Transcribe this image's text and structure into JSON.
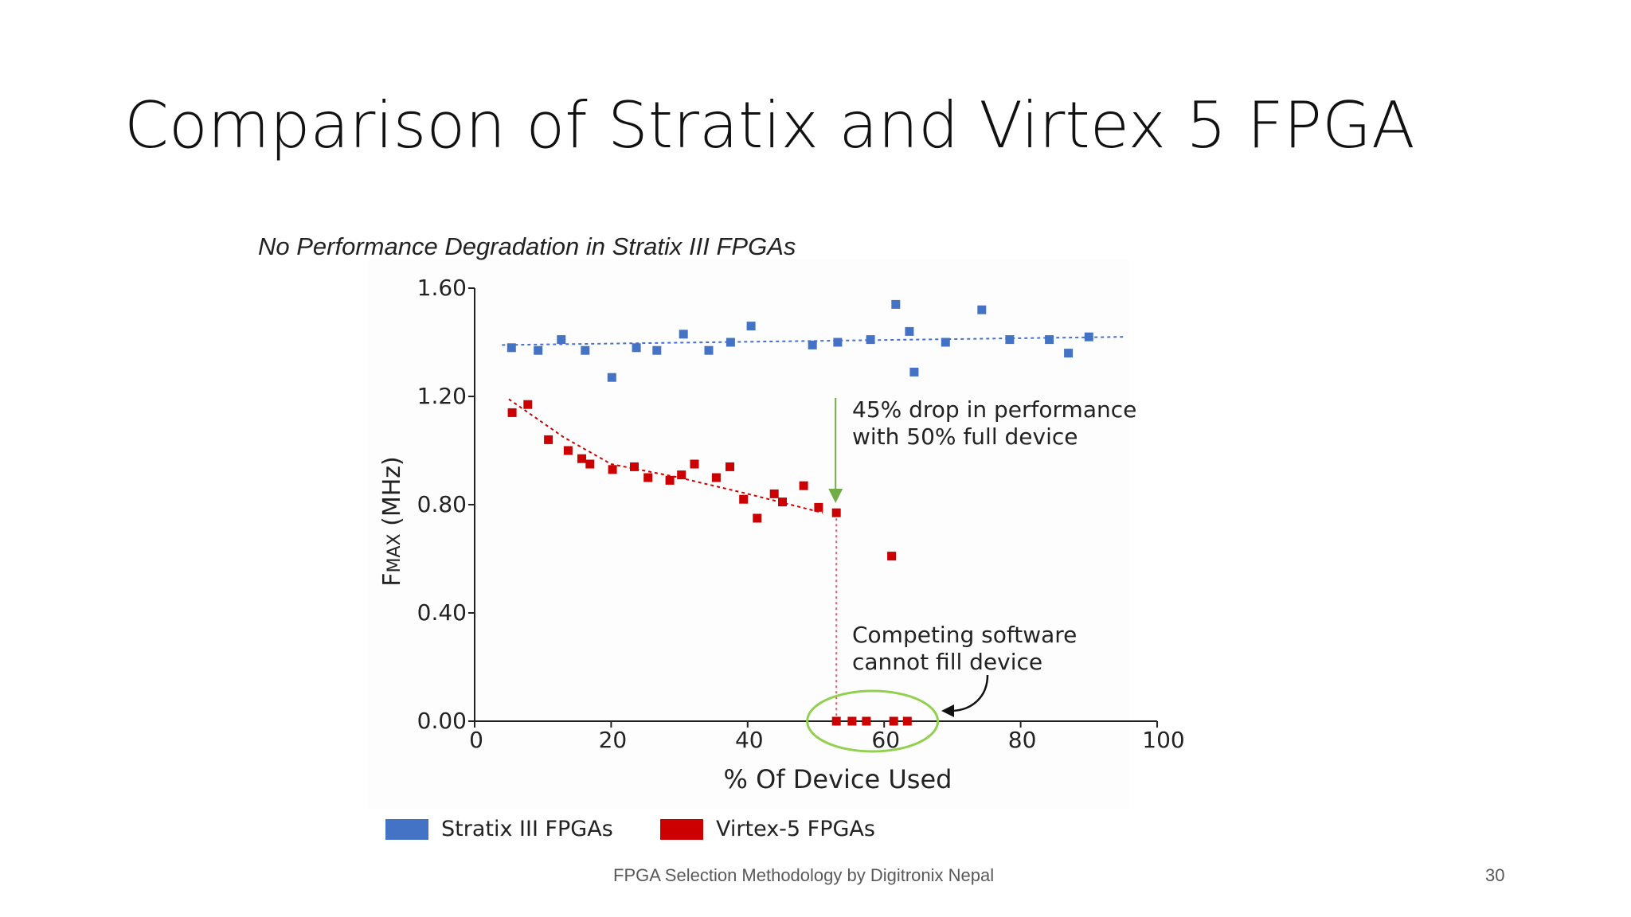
{
  "slide": {
    "title": "Comparison of Stratix and Virtex 5 FPGA",
    "footer_text": "FPGA Selection Methodology by Digitronix Nepal",
    "page_number": "30"
  },
  "chart_data": {
    "type": "scatter",
    "title": "No Performance Degradation in Stratix III FPGAs",
    "xlabel": "% Of Device Used",
    "ylabel_main": "F",
    "ylabel_sub": "MAX",
    "ylabel_unit": " (MHz)",
    "xlim": [
      0,
      100
    ],
    "ylim": [
      0,
      1.6
    ],
    "x_ticks": [
      0,
      20,
      40,
      60,
      80,
      100
    ],
    "x_tick_labels": [
      "0",
      "20",
      "40",
      "60",
      "80",
      "100"
    ],
    "y_ticks": [
      0,
      0.4,
      0.8,
      1.2,
      1.6
    ],
    "y_tick_labels": [
      "0.00",
      "0.40",
      "0.80",
      "1.20",
      "1.60"
    ],
    "grid": false,
    "legend_position": "bottom-left",
    "series": [
      {
        "name": "Stratix III FPGAs",
        "color": "#4472c4",
        "points": [
          [
            5.4,
            1.38
          ],
          [
            9.3,
            1.37
          ],
          [
            12.7,
            1.41
          ],
          [
            16.2,
            1.37
          ],
          [
            20.1,
            1.27
          ],
          [
            23.7,
            1.38
          ],
          [
            26.7,
            1.37
          ],
          [
            30.6,
            1.43
          ],
          [
            34.3,
            1.37
          ],
          [
            37.5,
            1.4
          ],
          [
            40.5,
            1.46
          ],
          [
            49.5,
            1.39
          ],
          [
            53.2,
            1.4
          ],
          [
            58.0,
            1.41
          ],
          [
            61.7,
            1.54
          ],
          [
            63.7,
            1.44
          ],
          [
            64.4,
            1.29
          ],
          [
            69.0,
            1.4
          ],
          [
            74.3,
            1.52
          ],
          [
            78.4,
            1.41
          ],
          [
            84.2,
            1.41
          ],
          [
            87.0,
            1.36
          ],
          [
            90.0,
            1.42
          ]
        ],
        "trend": [
          [
            4,
            1.39
          ],
          [
            95,
            1.42
          ]
        ]
      },
      {
        "name": "Virtex-5 FPGAs",
        "color": "#cc0000",
        "points": [
          [
            5.5,
            1.14
          ],
          [
            7.8,
            1.17
          ],
          [
            10.8,
            1.04
          ],
          [
            13.7,
            1.0
          ],
          [
            15.7,
            0.97
          ],
          [
            16.9,
            0.95
          ],
          [
            20.2,
            0.93
          ],
          [
            23.4,
            0.94
          ],
          [
            25.4,
            0.9
          ],
          [
            28.6,
            0.89
          ],
          [
            30.3,
            0.91
          ],
          [
            32.2,
            0.95
          ],
          [
            35.4,
            0.9
          ],
          [
            37.4,
            0.94
          ],
          [
            39.4,
            0.82
          ],
          [
            41.4,
            0.75
          ],
          [
            43.9,
            0.84
          ],
          [
            45.1,
            0.81
          ],
          [
            48.2,
            0.87
          ],
          [
            50.4,
            0.79
          ],
          [
            53.0,
            0.77
          ],
          [
            61.1,
            0.61
          ],
          [
            53.0,
            0.0
          ],
          [
            55.3,
            0.0
          ],
          [
            57.4,
            0.0
          ],
          [
            61.4,
            0.0
          ],
          [
            63.4,
            0.0
          ]
        ],
        "trend": [
          [
            5,
            1.19
          ],
          [
            13,
            1.05
          ],
          [
            20,
            0.95
          ],
          [
            30,
            0.9
          ],
          [
            40,
            0.84
          ],
          [
            51,
            0.77
          ]
        ]
      }
    ],
    "annotations": {
      "drop_text_line1": "45% drop in performance",
      "drop_text_line2": "with 50% full device",
      "fill_text_line1": "Competing software",
      "fill_text_line2": "cannot fill device",
      "drop_arrow_color": "#70ad47",
      "circle_color": "#92d050",
      "dashed_line_color": "#e06070"
    }
  }
}
